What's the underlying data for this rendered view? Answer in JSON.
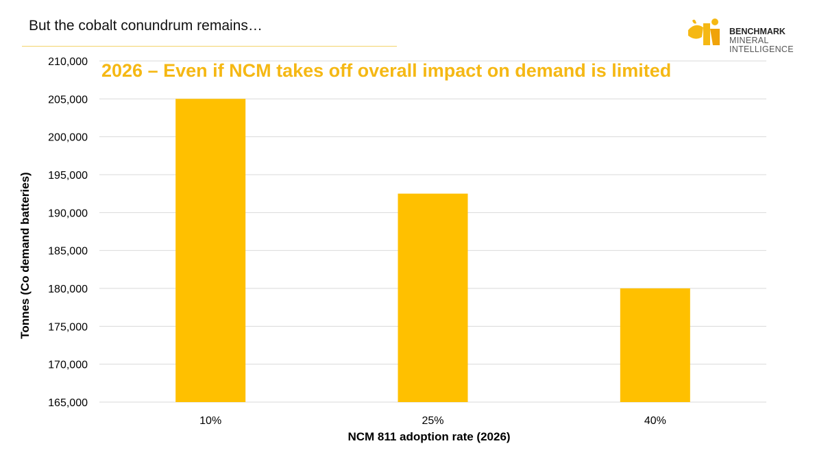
{
  "slide": {
    "title": "But the cobalt conundrum remains…"
  },
  "logo": {
    "line1": "BENCHMARK",
    "line2": "MINERAL",
    "line3": "INTELLIGENCE"
  },
  "colors": {
    "bar": "#FFC000",
    "heading": "#F5B814",
    "grid": "#D9D9D9",
    "rule": "#F3D36A"
  },
  "chart_data": {
    "type": "bar",
    "title": "2026 – Even if NCM takes off overall impact on demand is limited",
    "xlabel": "NCM 811 adoption rate (2026)",
    "ylabel": "Tonnes (Co demand batteries)",
    "categories": [
      "10%",
      "25%",
      "40%"
    ],
    "values": [
      205000,
      192500,
      180000
    ],
    "ylim": [
      165000,
      210000
    ],
    "yticks": [
      "165,000",
      "170,000",
      "175,000",
      "180,000",
      "185,000",
      "190,000",
      "195,000",
      "200,000",
      "205,000",
      "210,000"
    ],
    "grid": true,
    "legend": false
  }
}
